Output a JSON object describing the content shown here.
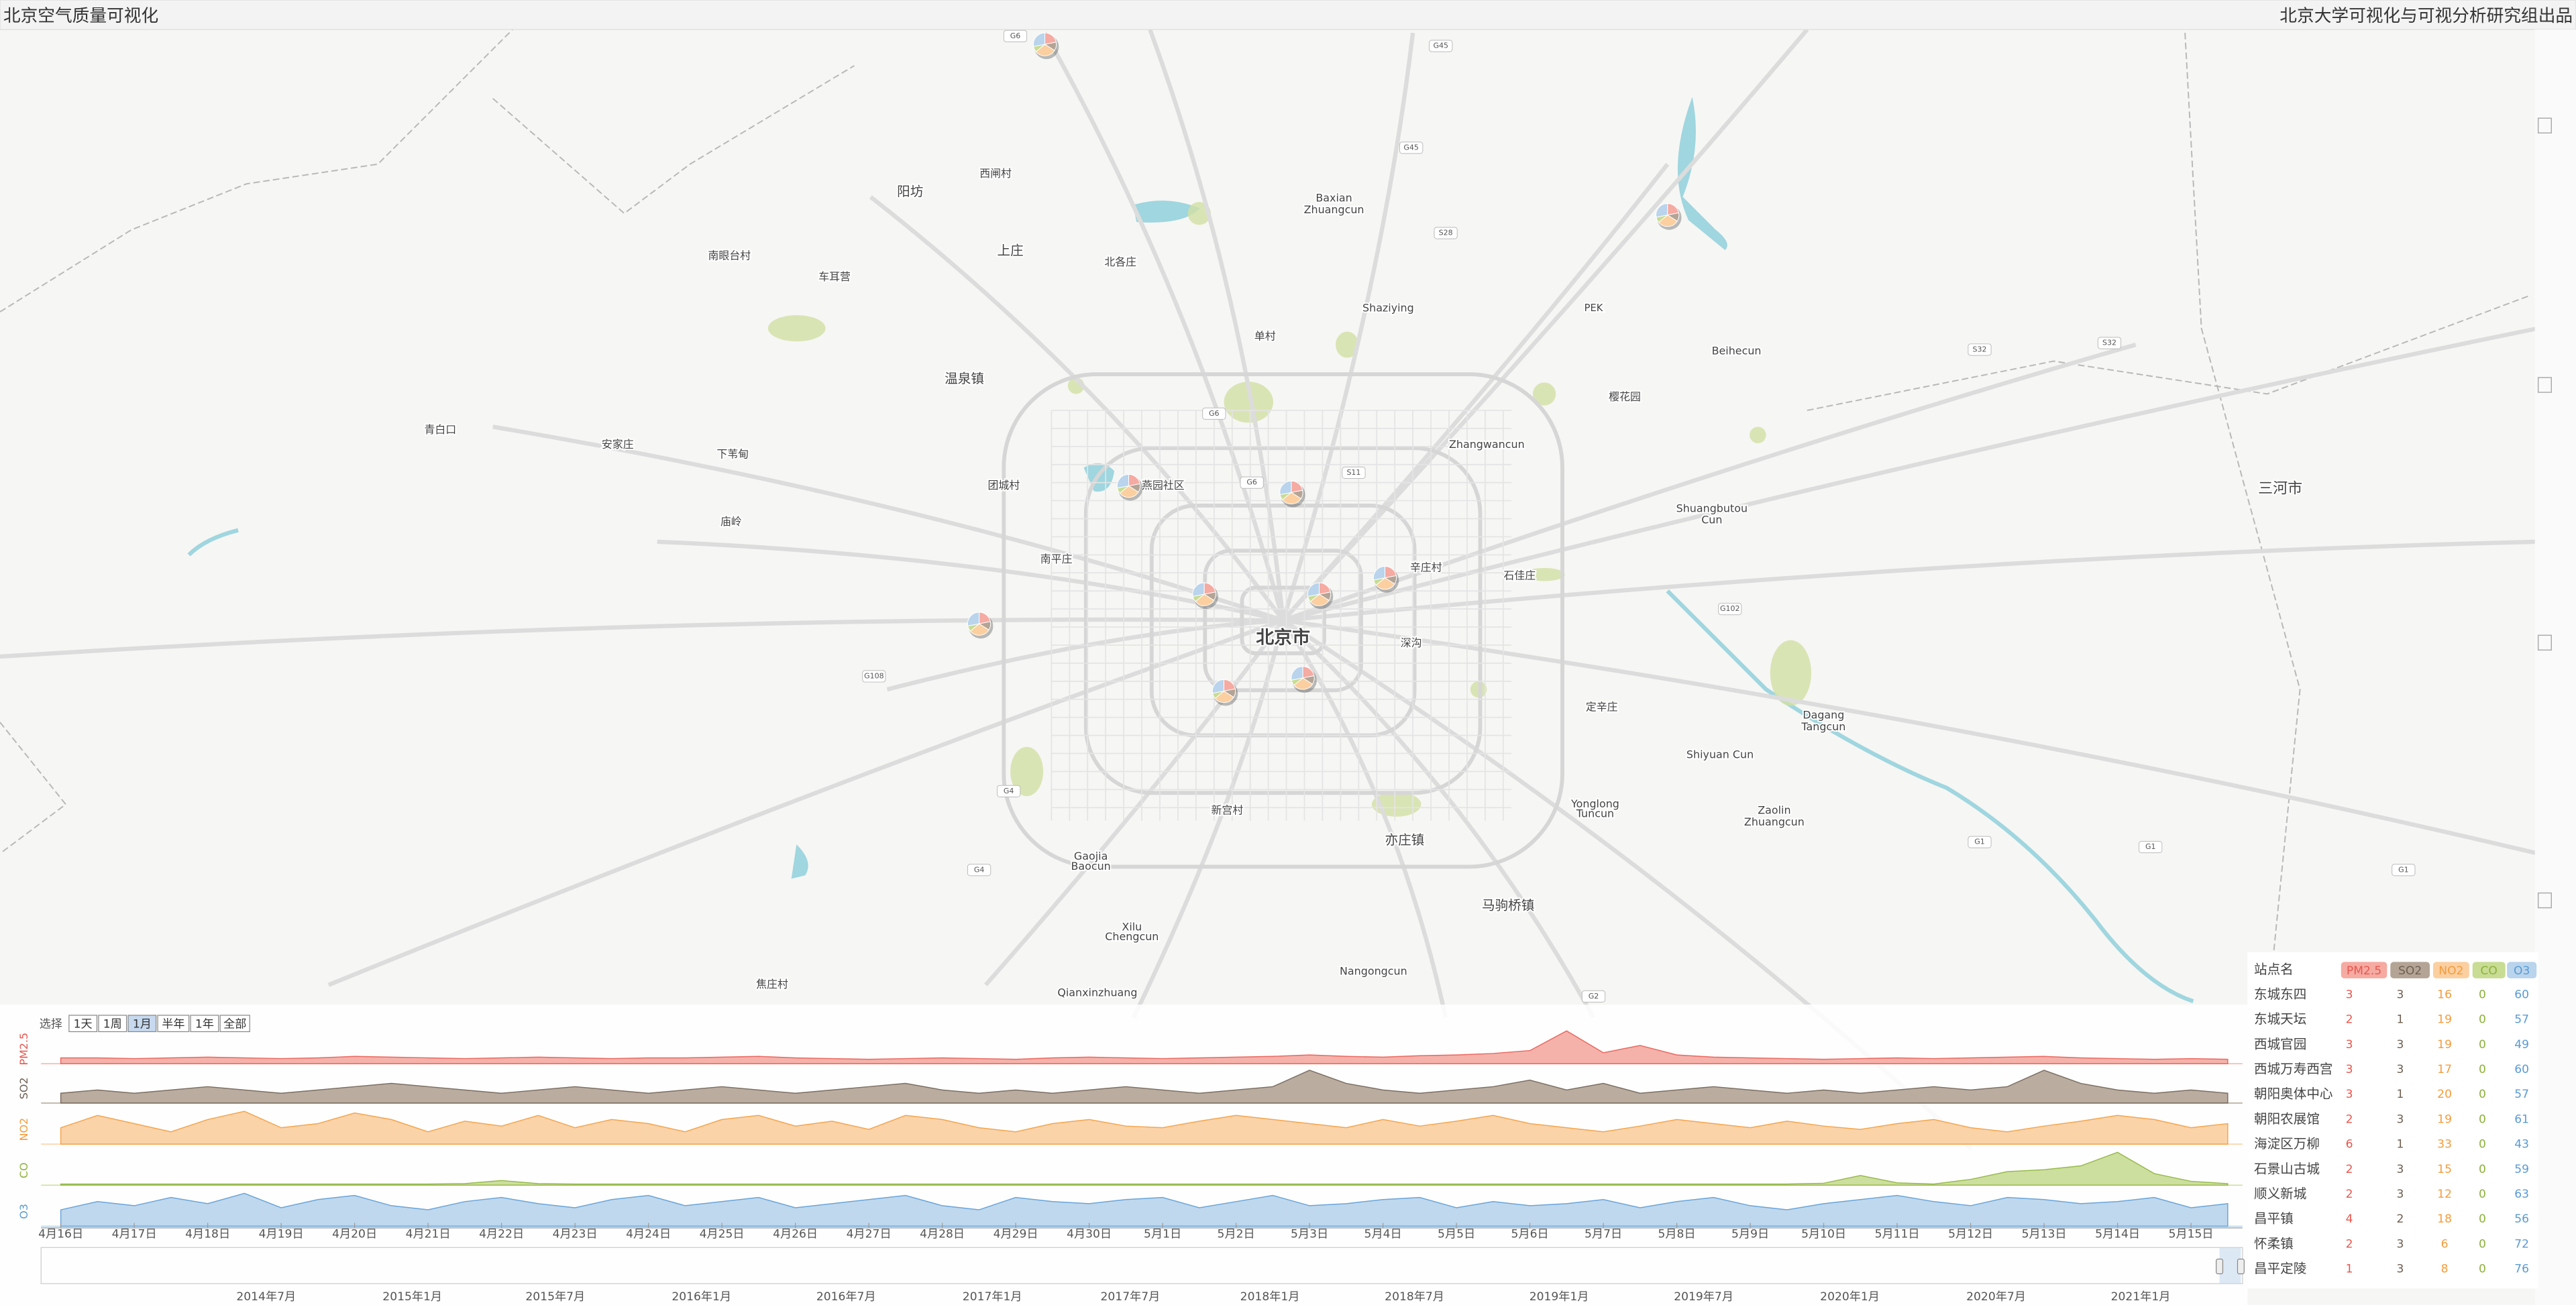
{
  "header": {
    "title": "北京空气质量可视化",
    "credit": "北京大学可视化与可视分析研究组出品"
  },
  "map": {
    "labels": [
      "阳坊",
      "西闸村",
      "Baxian",
      "Zhuangcun",
      "南眼台村",
      "车耳营",
      "上庄",
      "北各庄",
      "Shaziying",
      "PEK",
      "Beihecun",
      "单村",
      "温泉镇",
      "樱花园",
      "青白口",
      "安家庄",
      "下苇甸",
      "Zhangwancun",
      "三河市",
      "团城村",
      "燕园社区",
      "Shuangbutou",
      "Cun",
      "庙岭",
      "南平庄",
      "辛庄村",
      "石佳庄",
      "北京市",
      "深沟",
      "定辛庄",
      "Dagang",
      "Tangcun",
      "Shiyuan Cun",
      "Yonglong",
      "Tuncun",
      "Zaolin",
      "Zhuangcun",
      "新宫村",
      "亦庄镇",
      "Gaojia",
      "Baocun",
      "马驹桥镇",
      "Xilu",
      "Chengcun",
      "Nangongcun",
      "Qianxinzhuang",
      "焦庄村"
    ],
    "road_badges": [
      "G6",
      "G45",
      "G45",
      "S28",
      "S32",
      "S32",
      "G6",
      "S11",
      "G6",
      "G102",
      "G108",
      "G4",
      "G4",
      "G1",
      "G1",
      "G1",
      "G2"
    ]
  },
  "timeline": {
    "select_label": "选择",
    "buttons": [
      "1天",
      "1周",
      "1月",
      "半年",
      "1年",
      "全部"
    ]
  },
  "chart_data": {
    "type": "area",
    "categories": [
      "4月16日",
      null,
      "4月17日",
      null,
      "4月18日",
      null,
      "4月19日",
      null,
      "4月20日",
      null,
      "4月21日",
      null,
      "4月22日",
      null,
      "4月23日",
      null,
      "4月24日",
      null,
      "4月25日",
      null,
      "4月26日",
      null,
      "4月27日",
      null,
      "4月28日",
      null,
      "4月29日",
      null,
      "4月30日",
      null,
      "5月1日",
      null,
      "5月2日",
      null,
      "5月3日",
      null,
      "5月4日",
      null,
      "5月5日",
      null,
      "5月6日",
      null,
      "5月7日",
      null,
      "5月8日",
      null,
      "5月9日",
      null,
      "5月10日",
      null,
      "5月11日",
      null,
      "5月12日",
      null,
      "5月13日",
      null,
      "5月14日",
      null,
      "5月15日",
      null
    ],
    "series": [
      {
        "name": "PM2.5",
        "color": "#e8574e",
        "fill": "#f5aaa2",
        "values": [
          8,
          8,
          7,
          8,
          9,
          8,
          7,
          8,
          10,
          9,
          8,
          7,
          8,
          9,
          8,
          7,
          8,
          8,
          9,
          10,
          8,
          7,
          6,
          7,
          8,
          7,
          6,
          8,
          9,
          8,
          7,
          8,
          9,
          10,
          12,
          10,
          9,
          11,
          12,
          14,
          18,
          45,
          15,
          25,
          12,
          9,
          8,
          7,
          6,
          7,
          8,
          7,
          8,
          9,
          10,
          8,
          7,
          6,
          7,
          6
        ]
      },
      {
        "name": "SO2",
        "color": "#6e5f52",
        "fill": "#b3a495",
        "values": [
          3,
          4,
          3,
          4,
          5,
          4,
          3,
          4,
          5,
          6,
          5,
          4,
          3,
          4,
          5,
          4,
          3,
          4,
          5,
          4,
          3,
          4,
          5,
          6,
          4,
          3,
          4,
          3,
          4,
          5,
          4,
          3,
          4,
          5,
          10,
          6,
          4,
          3,
          4,
          5,
          7,
          4,
          6,
          3,
          4,
          5,
          4,
          3,
          4,
          3,
          4,
          5,
          4,
          5,
          10,
          6,
          4,
          3,
          4,
          3
        ]
      },
      {
        "name": "NO2",
        "color": "#f39c3c",
        "fill": "#fbcfa0",
        "values": [
          20,
          35,
          25,
          15,
          30,
          40,
          20,
          25,
          38,
          30,
          15,
          28,
          22,
          35,
          20,
          30,
          25,
          15,
          30,
          35,
          22,
          28,
          18,
          35,
          30,
          20,
          15,
          25,
          30,
          22,
          20,
          28,
          35,
          30,
          25,
          20,
          30,
          22,
          28,
          35,
          25,
          20,
          15,
          22,
          30,
          25,
          20,
          28,
          22,
          18,
          25,
          30,
          20,
          15,
          22,
          28,
          35,
          30,
          20,
          25
        ]
      },
      {
        "name": "CO",
        "color": "#8cb23a",
        "fill": "#c8dc94",
        "values": [
          0.3,
          0.3,
          0.3,
          0.3,
          0.3,
          0.3,
          0.3,
          0.3,
          0.3,
          0.3,
          0.3,
          0.4,
          1.2,
          0.4,
          0.3,
          0.3,
          0.3,
          0.3,
          0.3,
          0.3,
          0.3,
          0.3,
          0.3,
          0.3,
          0.3,
          0.3,
          0.3,
          0.3,
          0.3,
          0.3,
          0.3,
          0.3,
          0.3,
          0.3,
          0.3,
          0.3,
          0.3,
          0.3,
          0.3,
          0.3,
          0.3,
          0.3,
          0.3,
          0.3,
          0.3,
          0.3,
          0.3,
          0.3,
          0.5,
          2.5,
          0.6,
          0.3,
          1.5,
          3.5,
          4,
          5,
          8.5,
          3,
          1,
          0.4
        ]
      },
      {
        "name": "O3",
        "color": "#5a9bd4",
        "fill": "#b9d4ec",
        "values": [
          40,
          60,
          50,
          70,
          55,
          80,
          45,
          65,
          75,
          50,
          40,
          60,
          70,
          55,
          45,
          65,
          75,
          50,
          60,
          70,
          45,
          55,
          65,
          75,
          50,
          40,
          70,
          60,
          55,
          65,
          70,
          45,
          60,
          75,
          50,
          55,
          65,
          70,
          45,
          60,
          50,
          55,
          65,
          45,
          60,
          70,
          50,
          40,
          55,
          65,
          75,
          60,
          50,
          70,
          65,
          55,
          60,
          70,
          45,
          55
        ]
      }
    ]
  },
  "overview": {
    "ticks": [
      "2014年7月",
      "2015年1月",
      "2015年7月",
      "2016年1月",
      "2016年7月",
      "2017年1月",
      "2017年7月",
      "2018年1月",
      "2018年7月",
      "2019年1月",
      "2019年7月",
      "2020年1月",
      "2020年7月",
      "2021年1月"
    ]
  },
  "table": {
    "header": "站点名",
    "rows": [
      {
        "station": "东城东四",
        "values": [
          3,
          3,
          16,
          0,
          60
        ]
      },
      {
        "station": "东城天坛",
        "values": [
          2,
          1,
          19,
          0,
          57
        ]
      },
      {
        "station": "西城官园",
        "values": [
          3,
          3,
          19,
          0,
          49
        ]
      },
      {
        "station": "西城万寿西宫",
        "values": [
          3,
          3,
          17,
          0,
          60
        ]
      },
      {
        "station": "朝阳奥体中心",
        "values": [
          3,
          1,
          20,
          0,
          57
        ]
      },
      {
        "station": "朝阳农展馆",
        "values": [
          2,
          3,
          19,
          0,
          61
        ]
      },
      {
        "station": "海淀区万柳",
        "values": [
          6,
          1,
          33,
          0,
          43
        ]
      },
      {
        "station": "石景山古城",
        "values": [
          2,
          3,
          15,
          0,
          59
        ]
      },
      {
        "station": "顺义新城",
        "values": [
          2,
          3,
          12,
          0,
          63
        ]
      },
      {
        "station": "昌平镇",
        "values": [
          4,
          2,
          18,
          0,
          56
        ]
      },
      {
        "station": "怀柔镇",
        "values": [
          2,
          3,
          6,
          0,
          72
        ]
      },
      {
        "station": "昌平定陵",
        "values": [
          1,
          3,
          8,
          0,
          76
        ]
      }
    ]
  }
}
